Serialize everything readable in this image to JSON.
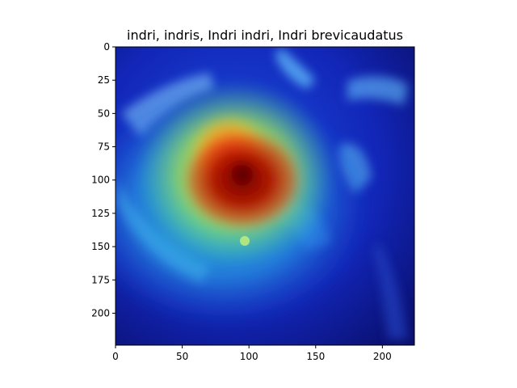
{
  "chart_data": {
    "type": "heatmap",
    "title": "indri, indris, Indri indri, Indri brevicaudatus",
    "description_kind": "class activation heatmap overlaid on image",
    "colormap": "jet",
    "xlim": [
      0,
      224
    ],
    "ylim": [
      224,
      0
    ],
    "x_ticks": [
      0,
      50,
      100,
      150,
      200
    ],
    "y_ticks": [
      0,
      25,
      50,
      75,
      100,
      125,
      150,
      175,
      200
    ],
    "activation_peak": {
      "x": 95,
      "y": 95
    },
    "hotspots": [
      {
        "level": "max",
        "x": 95,
        "y": 100,
        "rx": 45,
        "ry": 38
      },
      {
        "level": "high",
        "x": 85,
        "y": 80,
        "rx": 30,
        "ry": 30
      },
      {
        "level": "mid",
        "x": 90,
        "y": 95,
        "rx": 75,
        "ry": 70
      },
      {
        "level": "low",
        "x": 80,
        "y": 120,
        "rx": 110,
        "ry": 90
      }
    ]
  }
}
